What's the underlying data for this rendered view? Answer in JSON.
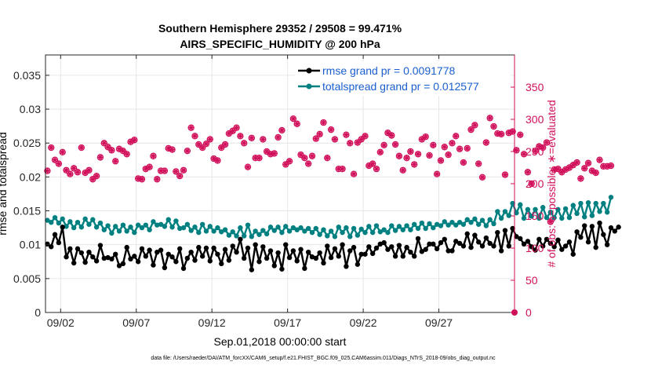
{
  "chart_data": {
    "type": "line",
    "title": [
      "Southern Hemisphere 29352 / 29508 = 99.471%",
      "AIRS_SPECIFIC_HUMIDITY @ 200 hPa"
    ],
    "xlabel": "Sep.01,2018 00:00:00 start",
    "ylabel": "rmse and totalspread",
    "y2label": "# of obs: o=possible; ∗=evaluated",
    "footnote": "data file: /Users/raeder/DAI/ATM_forcXX/CAM6_setup/f.e21.FHIST_BGC.f09_025.CAM6assim.011/Diags_NTrS_2018-09/obs_diag_output.nc",
    "x_ticks": [
      "09/02",
      "09/07",
      "09/12",
      "09/17",
      "09/22",
      "09/27"
    ],
    "x_tick_days": [
      2,
      7,
      12,
      17,
      22,
      27
    ],
    "xlim_days": [
      1,
      32
    ],
    "ylim": [
      0,
      0.038
    ],
    "y_ticks": [
      "0",
      "0.005",
      "0.01",
      "0.015",
      "0.02",
      "0.025",
      "0.03",
      "0.035"
    ],
    "y_tick_values": [
      0,
      0.005,
      0.01,
      0.015,
      0.02,
      0.025,
      0.03,
      0.035
    ],
    "y2lim": [
      0,
      400
    ],
    "y2_ticks": [
      "0",
      "50",
      "100",
      "150",
      "200",
      "250",
      "300",
      "350"
    ],
    "y2_tick_values": [
      0,
      50,
      100,
      150,
      200,
      250,
      300,
      350
    ],
    "grid": true,
    "legend_position": "top-right",
    "x_start_day": 1.125,
    "x_step_days": 0.25,
    "series": [
      {
        "name": "rmse grand pr = 0.0091778",
        "axis": "left",
        "color": "#000000",
        "marker": "circle",
        "values": [
          0.0101,
          0.0097,
          0.0115,
          0.0103,
          0.0126,
          0.0082,
          0.0094,
          0.0073,
          0.0094,
          0.0088,
          0.0074,
          0.0089,
          0.0082,
          0.0076,
          0.0099,
          0.008,
          0.0081,
          0.0079,
          0.0086,
          0.0069,
          0.0072,
          0.0096,
          0.0079,
          0.0083,
          0.0075,
          0.0094,
          0.0083,
          0.0092,
          0.007,
          0.0089,
          0.0092,
          0.0066,
          0.0086,
          0.0082,
          0.0075,
          0.0094,
          0.0065,
          0.008,
          0.0089,
          0.0077,
          0.0096,
          0.0083,
          0.0095,
          0.0076,
          0.0095,
          0.0086,
          0.0072,
          0.0093,
          0.0077,
          0.0098,
          0.0089,
          0.0108,
          0.008,
          0.0095,
          0.0063,
          0.01,
          0.0075,
          0.0097,
          0.008,
          0.0091,
          0.0069,
          0.0088,
          0.0064,
          0.01,
          0.0081,
          0.0091,
          0.0076,
          0.0093,
          0.0065,
          0.0089,
          0.0082,
          0.008,
          0.0088,
          0.0073,
          0.0098,
          0.0081,
          0.0094,
          0.0083,
          0.01,
          0.0068,
          0.0091,
          0.0096,
          0.0071,
          0.0086,
          0.0086,
          0.0097,
          0.0087,
          0.0095,
          0.0101,
          0.0103,
          0.0093,
          0.0097,
          0.0083,
          0.0099,
          0.0083,
          0.0096,
          0.0089,
          0.0083,
          0.0109,
          0.009,
          0.0093,
          0.0101,
          0.0101,
          0.0094,
          0.0103,
          0.0108,
          0.0091,
          0.0091,
          0.0105,
          0.0102,
          0.0098,
          0.0116,
          0.0096,
          0.0114,
          0.0104,
          0.0098,
          0.011,
          0.0102,
          0.0098,
          0.0118,
          0.0091,
          0.0121,
          0.0098,
          0.0124,
          0.0112,
          0.0109,
          0.0101,
          0.0105,
          0.0097,
          0.0092,
          0.0108,
          0.0098,
          0.0108,
          0.0102,
          0.0097,
          0.0107,
          0.0093,
          0.0098,
          0.0104,
          0.0086,
          0.0119,
          0.0111,
          0.0128,
          0.0104,
          0.0127,
          0.0096,
          0.0132,
          0.0115,
          0.01,
          0.0125,
          0.012,
          0.0126
        ]
      },
      {
        "name": "totalspread grand pr = 0.012577",
        "axis": "left",
        "color": "#008080",
        "marker": "circle",
        "values": [
          0.0136,
          0.0133,
          0.014,
          0.0132,
          0.0138,
          0.0127,
          0.0134,
          0.0125,
          0.0133,
          0.0126,
          0.0138,
          0.013,
          0.0137,
          0.0126,
          0.0132,
          0.0122,
          0.0128,
          0.0117,
          0.0127,
          0.012,
          0.0129,
          0.012,
          0.0126,
          0.0118,
          0.0129,
          0.0125,
          0.0129,
          0.0122,
          0.0134,
          0.0129,
          0.013,
          0.0127,
          0.0137,
          0.0126,
          0.0135,
          0.0124,
          0.0125,
          0.013,
          0.0121,
          0.0126,
          0.0118,
          0.013,
          0.012,
          0.0127,
          0.012,
          0.0125,
          0.0119,
          0.0122,
          0.0114,
          0.0119,
          0.0113,
          0.0125,
          0.0113,
          0.0129,
          0.0112,
          0.012,
          0.0115,
          0.0121,
          0.0116,
          0.0126,
          0.0121,
          0.0126,
          0.0118,
          0.0127,
          0.012,
          0.0125,
          0.0122,
          0.0125,
          0.012,
          0.0124,
          0.0118,
          0.0124,
          0.0115,
          0.0122,
          0.0113,
          0.012,
          0.0112,
          0.0126,
          0.0118,
          0.0125,
          0.0112,
          0.0124,
          0.0114,
          0.0123,
          0.0118,
          0.0127,
          0.0118,
          0.0128,
          0.0119,
          0.0122,
          0.0118,
          0.0128,
          0.0121,
          0.0127,
          0.0122,
          0.0128,
          0.0122,
          0.013,
          0.0124,
          0.0132,
          0.0124,
          0.0131,
          0.0125,
          0.013,
          0.0128,
          0.0134,
          0.0129,
          0.0133,
          0.0129,
          0.0133,
          0.013,
          0.0137,
          0.0133,
          0.0138,
          0.013,
          0.0136,
          0.0128,
          0.0137,
          0.0131,
          0.0149,
          0.0139,
          0.0149,
          0.0143,
          0.0161,
          0.0147,
          0.0159,
          0.0139,
          0.0152,
          0.0142,
          0.0152,
          0.0139,
          0.0155,
          0.014,
          0.0148,
          0.014,
          0.0152,
          0.0139,
          0.0153,
          0.014,
          0.0158,
          0.0146,
          0.0161,
          0.0141,
          0.0162,
          0.0143,
          0.0161,
          0.0149,
          0.0161,
          0.0148,
          0.017
        ]
      },
      {
        "name": "obs possible",
        "axis": "right",
        "color": "#d10f5a",
        "marker": "open-circle",
        "values": [
          220,
          256,
          237,
          231,
          249,
          221,
          215,
          224,
          218,
          256,
          217,
          221,
          207,
          212,
          241,
          263,
          257,
          252,
          235,
          254,
          251,
          246,
          265,
          268,
          208,
          207,
          223,
          226,
          243,
          207,
          220,
          220,
          255,
          253,
          219,
          212,
          221,
          251,
          287,
          274,
          261,
          256,
          262,
          269,
          239,
          236,
          256,
          261,
          278,
          282,
          287,
          274,
          263,
          226,
          271,
          240,
          240,
          269,
          250,
          246,
          247,
          272,
          283,
          230,
          235,
          301,
          293,
          245,
          240,
          231,
          243,
          270,
          277,
          295,
          240,
          284,
          269,
          223,
          223,
          276,
          263,
          215,
          264,
          269,
          274,
          228,
          231,
          223,
          249,
          260,
          279,
          275,
          261,
          243,
          221,
          240,
          250,
          230,
          246,
          269,
          273,
          244,
          260,
          215,
          236,
          257,
          245,
          263,
          274,
          254,
          233,
          255,
          284,
          291,
          231,
          210,
          264,
          302,
          289,
          278,
          277,
          214,
          279,
          281,
          252,
          276,
          246,
          218,
          200,
          251,
          258,
          256,
          264,
          141,
          222,
          223,
          218,
          222,
          225,
          229,
          233,
          208,
          224,
          232,
          220,
          217,
          237,
          227,
          227,
          228
        ]
      },
      {
        "name": "obs evaluated",
        "axis": "right",
        "color": "#d10f5a",
        "marker": "asterisk",
        "values": [
          220,
          256,
          237,
          231,
          249,
          221,
          215,
          224,
          218,
          256,
          217,
          221,
          207,
          212,
          241,
          263,
          257,
          252,
          235,
          254,
          251,
          246,
          265,
          268,
          208,
          207,
          223,
          226,
          243,
          207,
          220,
          220,
          255,
          253,
          219,
          212,
          221,
          251,
          287,
          274,
          261,
          256,
          262,
          269,
          239,
          236,
          256,
          261,
          278,
          282,
          287,
          274,
          263,
          226,
          271,
          240,
          240,
          269,
          250,
          246,
          247,
          272,
          283,
          230,
          235,
          301,
          293,
          245,
          240,
          231,
          243,
          270,
          277,
          295,
          240,
          284,
          269,
          223,
          223,
          276,
          263,
          215,
          264,
          269,
          274,
          228,
          231,
          223,
          249,
          260,
          279,
          275,
          261,
          243,
          221,
          240,
          250,
          230,
          246,
          269,
          273,
          244,
          260,
          215,
          236,
          257,
          245,
          263,
          274,
          254,
          233,
          255,
          284,
          291,
          231,
          210,
          264,
          302,
          289,
          278,
          277,
          214,
          279,
          281,
          252,
          276,
          246,
          218,
          200,
          251,
          258,
          256,
          264,
          141,
          222,
          223,
          218,
          222,
          225,
          229,
          233,
          208,
          224,
          232,
          220,
          217,
          237,
          227,
          227,
          228
        ]
      }
    ]
  }
}
